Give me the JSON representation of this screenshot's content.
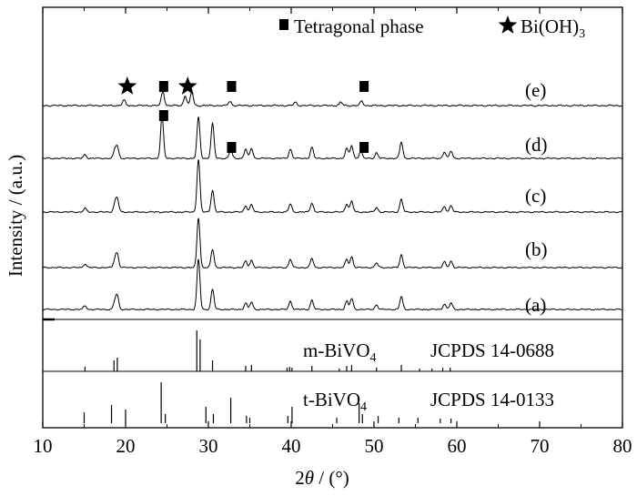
{
  "chart_data": {
    "type": "line",
    "title": "",
    "xlabel_prefix": "2",
    "xlabel_var": "θ",
    "xlabel_suffix": " / (°)",
    "ylabel": "Intensity / (a.u.)",
    "xlim": [
      10,
      80
    ],
    "xticks": [
      "10",
      "20",
      "30",
      "40",
      "50",
      "60",
      "70",
      "80"
    ],
    "grid": false,
    "legend": {
      "position": "top-right",
      "items": [
        {
          "marker": "square",
          "label": "Tetragonal phase"
        },
        {
          "marker": "star",
          "label": "Bi(OH)",
          "label_sub": "3"
        }
      ]
    },
    "series": [
      {
        "name": "(a)",
        "peaks": [
          [
            15.1,
            4
          ],
          [
            18.7,
            8
          ],
          [
            19.0,
            14
          ],
          [
            28.8,
            55
          ],
          [
            30.5,
            22
          ],
          [
            34.5,
            7
          ],
          [
            35.2,
            8
          ],
          [
            39.9,
            9
          ],
          [
            42.5,
            10
          ],
          [
            46.7,
            9
          ],
          [
            47.3,
            12
          ],
          [
            50.3,
            5
          ],
          [
            53.3,
            14
          ],
          [
            58.5,
            6
          ],
          [
            59.3,
            7
          ]
        ]
      },
      {
        "name": "(b)",
        "peaks": [
          [
            15.1,
            4
          ],
          [
            18.7,
            8
          ],
          [
            19.0,
            14
          ],
          [
            28.8,
            55
          ],
          [
            30.5,
            20
          ],
          [
            34.5,
            7
          ],
          [
            35.2,
            8
          ],
          [
            39.9,
            9
          ],
          [
            42.5,
            10
          ],
          [
            46.7,
            9
          ],
          [
            47.3,
            12
          ],
          [
            50.3,
            5
          ],
          [
            53.3,
            14
          ],
          [
            58.5,
            6
          ],
          [
            59.3,
            7
          ]
        ]
      },
      {
        "name": "(c)",
        "peaks": [
          [
            15.1,
            4
          ],
          [
            18.7,
            8
          ],
          [
            19.0,
            14
          ],
          [
            28.8,
            58
          ],
          [
            30.5,
            24
          ],
          [
            34.5,
            7
          ],
          [
            35.2,
            8
          ],
          [
            39.9,
            9
          ],
          [
            42.5,
            10
          ],
          [
            46.7,
            9
          ],
          [
            47.3,
            12
          ],
          [
            50.3,
            5
          ],
          [
            53.3,
            14
          ],
          [
            58.5,
            6
          ],
          [
            59.3,
            7
          ]
        ]
      },
      {
        "name": "(d)",
        "peaks": [
          [
            15.1,
            4
          ],
          [
            18.7,
            8
          ],
          [
            19.0,
            12
          ],
          [
            24.4,
            45
          ],
          [
            28.8,
            45
          ],
          [
            30.5,
            38
          ],
          [
            32.7,
            9
          ],
          [
            34.5,
            10
          ],
          [
            35.2,
            11
          ],
          [
            39.9,
            10
          ],
          [
            42.5,
            12
          ],
          [
            46.7,
            11
          ],
          [
            47.3,
            14
          ],
          [
            48.4,
            8
          ],
          [
            50.3,
            6
          ],
          [
            53.3,
            18
          ],
          [
            58.5,
            7
          ],
          [
            59.3,
            8
          ]
        ]
      },
      {
        "name": "(e)",
        "peaks": [
          [
            19.8,
            5
          ],
          [
            24.5,
            13
          ],
          [
            27.2,
            9
          ],
          [
            28.0,
            12
          ],
          [
            32.6,
            4
          ],
          [
            40.5,
            3
          ],
          [
            46.0,
            3
          ],
          [
            48.5,
            4
          ]
        ]
      }
    ],
    "markers": [
      {
        "type": "star",
        "series": "(e)",
        "x": 20.2
      },
      {
        "type": "square",
        "series": "(e)",
        "x": 24.6
      },
      {
        "type": "star",
        "series": "(e)",
        "x": 27.5
      },
      {
        "type": "square",
        "series": "(e)",
        "x": 32.8
      },
      {
        "type": "square",
        "series": "(e)",
        "x": 48.8
      },
      {
        "type": "square",
        "series": "(d)",
        "x": 24.6
      },
      {
        "type": "square",
        "series": "(d)",
        "x": 32.8
      },
      {
        "type": "square",
        "series": "(d)",
        "x": 48.8
      }
    ],
    "references": [
      {
        "phase": "m-BiVO",
        "phase_sub": "4",
        "card": "JCPDS 14-0688",
        "lines": [
          [
            15.1,
            5
          ],
          [
            18.6,
            12
          ],
          [
            19.0,
            15
          ],
          [
            28.6,
            45
          ],
          [
            29.0,
            35
          ],
          [
            30.5,
            12
          ],
          [
            34.5,
            6
          ],
          [
            35.2,
            7
          ],
          [
            39.5,
            4
          ],
          [
            39.8,
            5
          ],
          [
            40.1,
            4
          ],
          [
            42.5,
            6
          ],
          [
            45.8,
            3
          ],
          [
            46.7,
            6
          ],
          [
            47.3,
            7
          ],
          [
            50.3,
            4
          ],
          [
            53.3,
            7
          ],
          [
            55.5,
            3
          ],
          [
            57.0,
            3
          ],
          [
            58.3,
            4
          ],
          [
            59.2,
            4
          ]
        ]
      },
      {
        "phase": "t-BiVO",
        "phase_sub": "4",
        "card": "JCPDS 14-0133",
        "lines": [
          [
            15.0,
            12
          ],
          [
            18.3,
            20
          ],
          [
            20.0,
            15
          ],
          [
            24.3,
            45
          ],
          [
            24.8,
            10
          ],
          [
            29.7,
            18
          ],
          [
            30.6,
            10
          ],
          [
            32.7,
            28
          ],
          [
            34.6,
            8
          ],
          [
            35.0,
            6
          ],
          [
            39.6,
            8
          ],
          [
            40.1,
            18
          ],
          [
            45.5,
            6
          ],
          [
            48.2,
            22
          ],
          [
            48.6,
            10
          ],
          [
            50.5,
            8
          ],
          [
            53.0,
            6
          ],
          [
            55.3,
            6
          ],
          [
            58.0,
            5
          ],
          [
            59.3,
            5
          ]
        ]
      }
    ]
  }
}
